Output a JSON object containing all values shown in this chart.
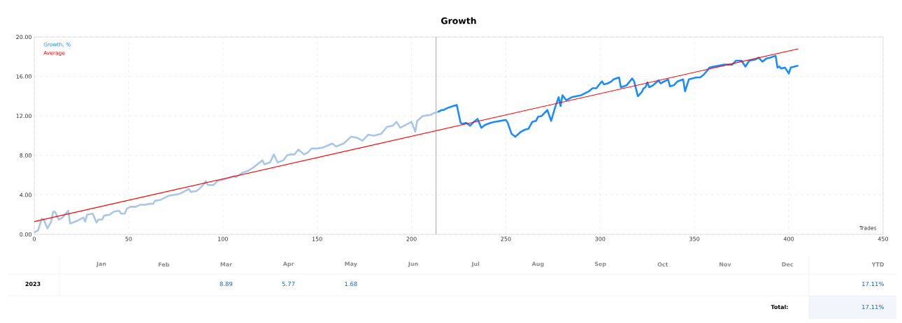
{
  "chart_data": [
    {
      "type": "line",
      "title": "Growth",
      "xlabel": "Trades",
      "xlim": [
        0,
        450
      ],
      "ylim": [
        0,
        20
      ],
      "xticks": [
        0,
        50,
        100,
        150,
        200,
        250,
        300,
        350,
        400,
        450
      ],
      "yticks": [
        {
          "value": 0,
          "label": "0.00"
        },
        {
          "value": 4,
          "label": "4.00"
        },
        {
          "value": 8,
          "label": "8.00"
        },
        {
          "value": 12,
          "label": "12.00"
        },
        {
          "value": 16,
          "label": "16.00"
        },
        {
          "value": 20,
          "label": "20.00"
        }
      ],
      "grid": true,
      "legend": "top left",
      "ref_lines": [
        {
          "axis": "x",
          "value": 213,
          "color": "#b4b4b4"
        }
      ],
      "series": [
        {
          "color": "#a9c6e8",
          "x": [
            0,
            2,
            4,
            5,
            7,
            9,
            10,
            11,
            13,
            15,
            18,
            19,
            23,
            26,
            27,
            28,
            31,
            33,
            34,
            36,
            37,
            40,
            42,
            45,
            46,
            48,
            49,
            51,
            54,
            56,
            59,
            61,
            63,
            64,
            67,
            71,
            74,
            77,
            79,
            82,
            83,
            86,
            88,
            89,
            91,
            92,
            95,
            97,
            99,
            103,
            106,
            107,
            110,
            114,
            117,
            121,
            122,
            125,
            127,
            129,
            132,
            134,
            136,
            138,
            140,
            143,
            145,
            147,
            150,
            153,
            158,
            160,
            164,
            168,
            171,
            174,
            177,
            180,
            184,
            187,
            190,
            192,
            194,
            197,
            200,
            202,
            203,
            206,
            210,
            212,
            214
          ],
          "values": [
            0.2,
            0.4,
            1.6,
            1.5,
            0.6,
            1.3,
            2.3,
            2.3,
            1.5,
            1.7,
            2.4,
            1.1,
            1.4,
            1.7,
            1.3,
            2.0,
            2.1,
            1.2,
            1.5,
            1.5,
            1.9,
            2.0,
            2.3,
            2.4,
            2.1,
            2.1,
            2.6,
            2.8,
            2.8,
            3.0,
            3.0,
            3.1,
            3.1,
            3.4,
            3.5,
            3.9,
            4.0,
            4.1,
            4.3,
            4.6,
            4.3,
            4.4,
            4.7,
            4.9,
            5.4,
            5.0,
            5.0,
            5.4,
            5.5,
            5.7,
            5.9,
            5.8,
            6.2,
            6.5,
            6.9,
            7.5,
            7.1,
            7.3,
            8.1,
            7.3,
            7.5,
            8.0,
            8.1,
            8.1,
            8.6,
            8.1,
            8.3,
            8.7,
            8.7,
            8.8,
            9.2,
            8.9,
            9.2,
            9.9,
            9.8,
            9.5,
            10.1,
            10.0,
            10.2,
            10.9,
            11.0,
            11.4,
            10.8,
            11.1,
            11.4,
            10.4,
            11.5,
            12.0,
            12.1,
            12.3,
            12.4
          ]
        },
        {
          "name": "Growth, %",
          "color": "#1a8cff",
          "x": [
            214,
            216,
            217,
            219,
            222,
            224,
            226,
            227,
            229,
            231,
            233,
            235,
            237,
            239,
            242,
            244,
            247,
            250,
            251,
            253,
            255,
            258,
            260,
            262,
            264,
            266,
            267,
            269,
            272,
            274,
            276,
            278,
            279,
            280,
            282,
            285,
            290,
            294,
            296,
            298,
            300,
            301,
            302,
            304,
            306,
            307,
            310,
            311,
            314,
            317,
            318,
            320,
            322,
            323,
            324,
            325,
            326,
            328,
            331,
            332,
            336,
            337,
            339,
            341,
            344,
            345,
            347,
            351,
            353,
            355,
            358,
            360,
            363,
            366,
            370,
            372,
            375,
            377,
            379,
            382,
            384,
            386,
            388,
            390,
            393,
            394,
            395,
            396,
            398,
            400,
            401,
            403,
            405
          ],
          "values": [
            12.4,
            12.6,
            12.6,
            12.8,
            13.0,
            13.1,
            11.3,
            11.2,
            11.3,
            11.0,
            11.4,
            11.7,
            10.8,
            11.1,
            11.3,
            11.4,
            11.5,
            11.6,
            11.3,
            10.2,
            9.9,
            10.4,
            10.6,
            10.7,
            11.4,
            11.5,
            11.9,
            12.0,
            12.6,
            11.5,
            12.8,
            13.9,
            13.0,
            14.1,
            13.6,
            13.9,
            14.1,
            14.5,
            14.8,
            14.8,
            15.3,
            15.5,
            15.2,
            15.3,
            15.5,
            15.7,
            15.9,
            14.9,
            15.1,
            15.8,
            15.5,
            14.0,
            14.4,
            14.8,
            14.9,
            15.4,
            14.9,
            15.1,
            15.6,
            15.3,
            15.7,
            15.0,
            15.1,
            15.5,
            15.7,
            14.5,
            15.7,
            15.9,
            15.9,
            16.2,
            16.9,
            17.0,
            17.1,
            17.2,
            17.2,
            17.6,
            17.6,
            17.0,
            17.6,
            17.7,
            17.9,
            17.5,
            17.8,
            17.9,
            18.1,
            16.9,
            17.0,
            16.8,
            16.9,
            16.3,
            16.9,
            17.0,
            17.1
          ]
        },
        {
          "name": "Average",
          "color": "#ff0000",
          "x": [
            0,
            405
          ],
          "values": [
            1.3,
            18.8
          ]
        }
      ]
    },
    {
      "type": "other",
      "categories": [
        "Jan",
        "Feb",
        "Mar",
        "Apr",
        "May",
        "Jun",
        "Jul",
        "Aug",
        "Sep",
        "Oct",
        "Nov",
        "Dec",
        "YTD"
      ],
      "y_categories": [
        "2023"
      ],
      "cell_labels": [
        [
          null,
          null,
          "8.89",
          "5.77",
          "1.68",
          null,
          null,
          null,
          null,
          null,
          null,
          null,
          "17.11%"
        ]
      ],
      "annotations": [
        "Total:",
        "17.11%"
      ]
    }
  ]
}
